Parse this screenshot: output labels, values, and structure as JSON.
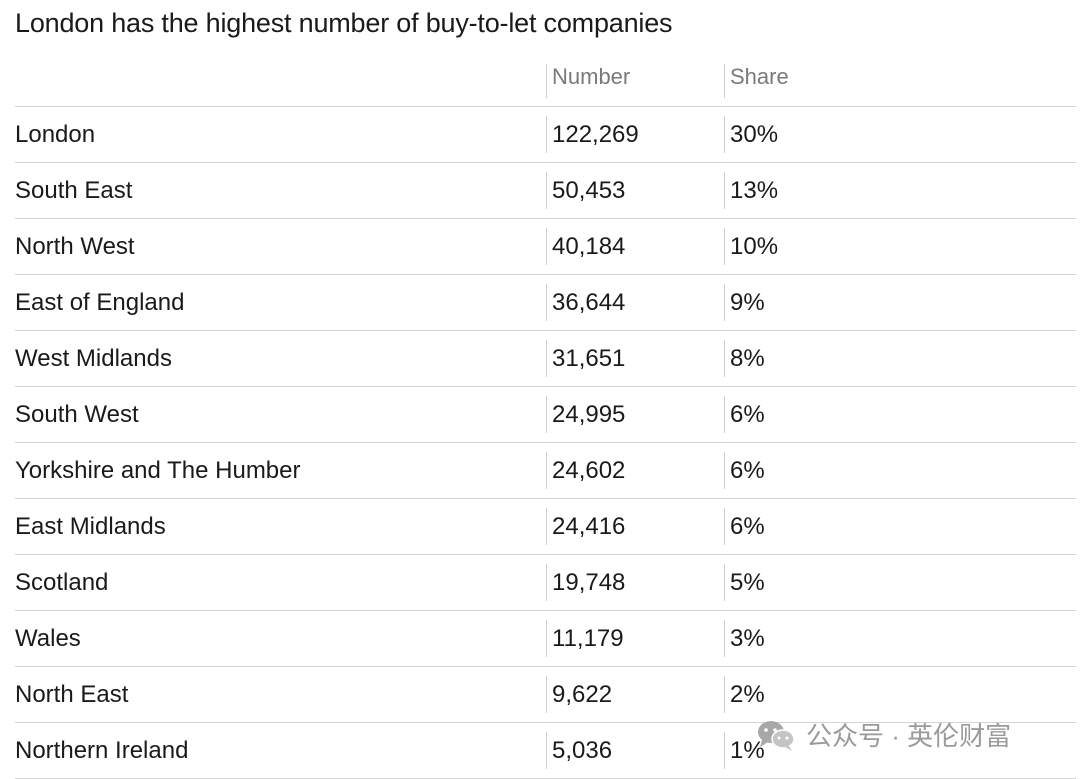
{
  "chart_data": {
    "type": "table",
    "title": "London has the highest number of buy-to-let companies",
    "columns": [
      "",
      "Number",
      "Share"
    ],
    "rows": [
      {
        "region": "London",
        "number": "122,269",
        "share": "30%"
      },
      {
        "region": "South East",
        "number": "50,453",
        "share": "13%"
      },
      {
        "region": "North West",
        "number": "40,184",
        "share": "10%"
      },
      {
        "region": "East of England",
        "number": "36,644",
        "share": "9%"
      },
      {
        "region": "West Midlands",
        "number": "31,651",
        "share": "8%"
      },
      {
        "region": "South West",
        "number": "24,995",
        "share": "6%"
      },
      {
        "region": "Yorkshire and The Humber",
        "number": "24,602",
        "share": "6%"
      },
      {
        "region": "East Midlands",
        "number": "24,416",
        "share": "6%"
      },
      {
        "region": "Scotland",
        "number": "19,748",
        "share": "5%"
      },
      {
        "region": "Wales",
        "number": "11,179",
        "share": "3%"
      },
      {
        "region": "North East",
        "number": "9,622",
        "share": "2%"
      },
      {
        "region": "Northern Ireland",
        "number": "5,036",
        "share": "1%"
      }
    ]
  },
  "watermark": {
    "text": "公众号 · 英伦财富",
    "icon": "wechat-icon"
  }
}
